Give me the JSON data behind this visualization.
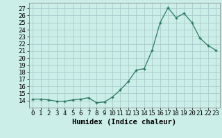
{
  "x": [
    0,
    1,
    2,
    3,
    4,
    5,
    6,
    7,
    8,
    9,
    10,
    11,
    12,
    13,
    14,
    15,
    16,
    17,
    18,
    19,
    20,
    21,
    22,
    23
  ],
  "y": [
    14.2,
    14.2,
    14.1,
    13.9,
    13.9,
    14.1,
    14.2,
    14.4,
    13.7,
    13.8,
    14.5,
    15.5,
    16.7,
    18.3,
    18.5,
    21.1,
    25.0,
    27.1,
    25.7,
    26.3,
    25.0,
    22.8,
    21.8,
    21.1
  ],
  "xlabel": "Humidex (Indice chaleur)",
  "xlim": [
    -0.5,
    23.5
  ],
  "ylim": [
    13.0,
    27.8
  ],
  "yticks": [
    14,
    15,
    16,
    17,
    18,
    19,
    20,
    21,
    22,
    23,
    24,
    25,
    26,
    27
  ],
  "xtick_labels": [
    "0",
    "1",
    "2",
    "3",
    "4",
    "5",
    "6",
    "7",
    "8",
    "9",
    "10",
    "11",
    "12",
    "13",
    "14",
    "15",
    "16",
    "17",
    "18",
    "19",
    "20",
    "21",
    "22",
    "23"
  ],
  "bg_color": "#cceee8",
  "line_color": "#2a7a62",
  "grid_color": "#aacccc",
  "tick_fontsize": 6.5,
  "label_fontsize": 7.5
}
